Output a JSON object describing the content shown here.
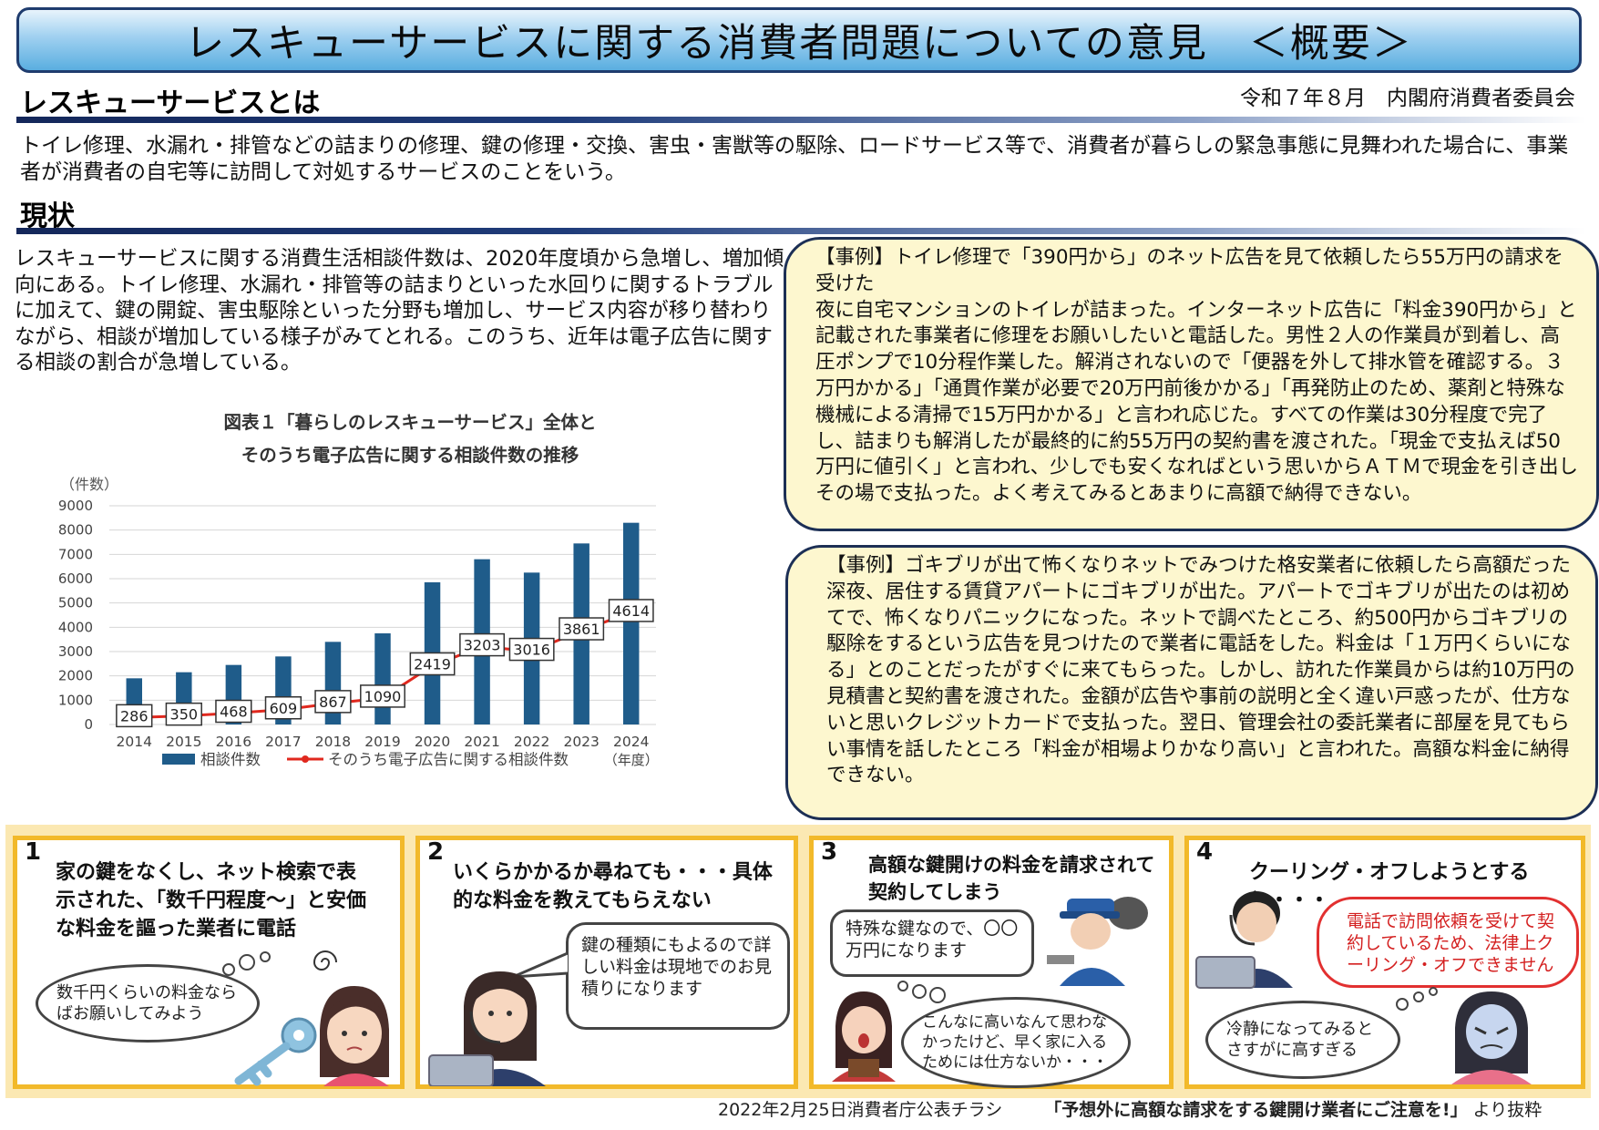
{
  "title": "レスキューサービスに関する消費者問題についての意見　＜概要＞",
  "issuer": "令和７年８月　内閣府消費者委員会",
  "definition": {
    "heading": "レスキューサービスとは",
    "text": "トイレ修理、水漏れ・排管などの詰まりの修理、鍵の修理・交換、害虫・害獣等の駆除、ロードサービス等で、消費者が暮らしの緊急事態に見舞われた場合に、事業者が消費者の自宅等に訪問して対処するサービスのことをいう。"
  },
  "status": {
    "heading": "現状",
    "text": "レスキューサービスに関する消費生活相談件数は、2020年度頃から急増し、増加傾向にある。トイレ修理、水漏れ・排管等の詰まりといった水回りに関するトラブルに加えて、鍵の開錠、害虫駆除といった分野も増加し、サービス内容が移り替わりながら、相談が増加している様子がみてとれる。このうち、近年は電子広告に関する相談の割合が急増している。"
  },
  "chart_data": {
    "type": "bar",
    "caption_line1": "図表１「暮らしのレスキューサービス」全体と",
    "caption_line2": "そのうち電子広告に関する相談件数の推移",
    "ylabel": "（件数）",
    "xlabel": "（年度）",
    "ylim": [
      0,
      9000
    ],
    "yticks": [
      0,
      1000,
      2000,
      3000,
      4000,
      5000,
      6000,
      7000,
      8000,
      9000
    ],
    "categories": [
      "2014",
      "2015",
      "2016",
      "2017",
      "2018",
      "2019",
      "2020",
      "2021",
      "2022",
      "2023",
      "2024"
    ],
    "series": [
      {
        "name": "相談件数",
        "type": "bar",
        "color": "#1f5c8a",
        "values": [
          1900,
          2150,
          2450,
          2800,
          3400,
          3750,
          5850,
          6800,
          6250,
          7450,
          8300
        ]
      },
      {
        "name": "そのうち電子広告に関する相談件数",
        "type": "line",
        "color": "#e0281e",
        "values": [
          286,
          350,
          468,
          609,
          867,
          1090,
          2419,
          3203,
          3016,
          3861,
          4614
        ]
      }
    ],
    "grid": true,
    "legend": "bottom"
  },
  "cases": [
    {
      "title": "【事例】トイレ修理で「390円から」のネット広告を見て依頼したら55万円の請求を受けた",
      "body": "夜に自宅マンションのトイレが詰まった。インターネット広告に「料金390円から」と記載された事業者に修理をお願いしたいと電話した。男性２人の作業員が到着し、高圧ポンプで10分程作業した。解消されないので「便器を外して排水管を確認する。３万円かかる」「通貫作業が必要で20万円前後かかる」「再発防止のため、薬剤と特殊な機械による清掃で15万円かかる」と言われ応じた。すべての作業は30分程度で完了し、詰まりも解消したが最終的に約55万円の契約書を渡された。「現金で支払えば50万円に値引く」と言われ、少しでも安くなればという思いからＡＴＭで現金を引き出しその場で支払った。よく考えてみるとあまりに高額で納得できない。"
    },
    {
      "title": "【事例】ゴキブリが出て怖くなりネットでみつけた格安業者に依頼したら高額だった",
      "body": "深夜、居住する賃貸アパートにゴキブリが出た。アパートでゴキブリが出たのは初めてで、怖くなりパニックになった。ネットで調べたところ、約500円からゴキブリの駆除をするという広告を見つけたので業者に電話をした。料金は「１万円くらいになる」とのことだったがすぐに来てもらった。しかし、訪れた作業員からは約10万円の見積書と契約書を渡された。金額が広告や事前の説明と全く違い戸惑ったが、仕方ないと思いクレジットカードで支払った。翌日、管理会社の委託業者に部屋を見てもらい事情を話したところ「料金が相場よりかなり高い」と言われた。高額な料金に納得できない。"
    }
  ],
  "panels": [
    {
      "num": "1",
      "heading": "家の鍵をなくし、ネット検索で表示された、「数千円程度～」と安価な料金を謳った業者に電話",
      "bubble": "数千円くらいの料金ならばお願いしてみよう"
    },
    {
      "num": "2",
      "heading": "いくらかかるか尋ねても・・・具体的な料金を教えてもらえない",
      "bubble": "鍵の種類にもよるので詳しい料金は現地でのお見積りになります"
    },
    {
      "num": "3",
      "heading": "高額な鍵開けの料金を請求されて契約してしまう",
      "bubble": "特殊な鍵なので、〇〇万円になります",
      "thought": "こんなに高いなんて思わなかったけど、早く家に入るためには仕方ないか・・・"
    },
    {
      "num": "4",
      "heading": "クーリング・オフしようとすると・・・",
      "bubble": "電話で訪問依頼を受けて契約しているため、法律上クーリング・オフできません",
      "thought": "冷静になってみるとさすがに高すぎる"
    }
  ],
  "footer": {
    "source": "2022年2月25日消費者庁公表チラシ",
    "quote": "「予想外に高額な請求をする鍵開け業者にご注意を!」",
    "tail": "より抜粋"
  },
  "colors": {
    "accent": "#1f3c6e",
    "bar": "#1f5c8a",
    "line": "#e0281e",
    "case_bg": "#fdf7cf",
    "panel_border": "#f2b92a"
  }
}
